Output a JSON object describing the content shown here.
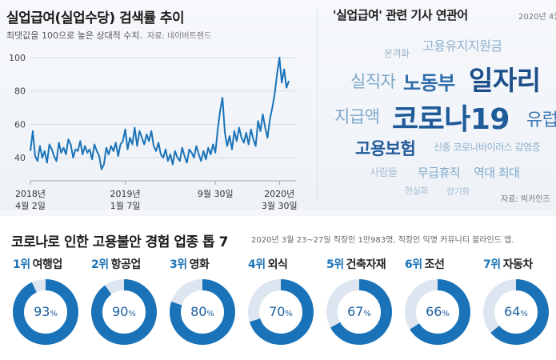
{
  "left_chart": {
    "title": "실업급여(실업수당) 검색률 추이",
    "subtitle": "최댓값을 100으로 놓은 상대적 수치.",
    "source": "자료: 네이버트렌드"
  },
  "word_cloud": {
    "title": "'실업급여' 관련 기사 연관어",
    "date": "2020년 4월",
    "source": "자료: 빅카인즈",
    "words": [
      {
        "text": "본격화",
        "color": "#9db3c9"
      },
      {
        "text": "고용유지지원금",
        "color": "#8fb0cc"
      },
      {
        "text": "실직자",
        "color": "#7fa8c9"
      },
      {
        "text": "노동부",
        "color": "#2c6aa8"
      },
      {
        "text": "일자리",
        "color": "#1c4f8a"
      },
      {
        "text": "지급액",
        "color": "#7fa8c9"
      },
      {
        "text": "코로나19",
        "color": "#1f5a99"
      },
      {
        "text": "유럽",
        "color": "#3d78b3"
      },
      {
        "text": "고용보험",
        "color": "#1f5a99"
      },
      {
        "text": "신종 코로나바이러스 감염증",
        "color": "#8fb0cc"
      },
      {
        "text": "사람들",
        "color": "#a7bdd2"
      },
      {
        "text": "무급휴직",
        "color": "#7fa8c9"
      },
      {
        "text": "역대 최대",
        "color": "#7fa8c9"
      },
      {
        "text": "현실화",
        "color": "#a7bdd2"
      },
      {
        "text": "장기화",
        "color": "#a7bdd2"
      }
    ]
  },
  "bottom": {
    "title": "코로나로 인한 고용불안 경험 업종 톱 7",
    "subtitle": "2020년 3월 23~27일 직장인 1만983명, 직장인 익명 커뮤니티 블라인드 앱."
  },
  "industries": [
    {
      "rank": "1위",
      "name": "여행업",
      "pct": 93,
      "pct_label": "93"
    },
    {
      "rank": "2위",
      "name": "항공업",
      "pct": 90,
      "pct_label": "90"
    },
    {
      "rank": "3위",
      "name": "영화",
      "pct": 80,
      "pct_label": "80"
    },
    {
      "rank": "4위",
      "name": "외식",
      "pct": 70,
      "pct_label": "70"
    },
    {
      "rank": "5위",
      "name": "건축자재",
      "pct": 67,
      "pct_label": "67"
    },
    {
      "rank": "6위",
      "name": "조선",
      "pct": 66,
      "pct_label": "66"
    },
    {
      "rank": "7위",
      "name": "자동차",
      "pct": 64,
      "pct_label": "64"
    }
  ],
  "pct_unit": "%",
  "colors": {
    "accent": "#1a73b8",
    "ring_bg": "#dde6f0",
    "line": "#1a73b8"
  },
  "chart_data": [
    {
      "type": "line",
      "title": "실업급여(실업수당) 검색률 추이",
      "subtitle": "최댓값을 100으로 놓은 상대적 수치.",
      "xlabel": "",
      "ylabel": "",
      "ylim": [
        30,
        100
      ],
      "yticks": [
        40,
        60,
        80,
        100
      ],
      "grid": true,
      "x_range": [
        0,
        112
      ],
      "x_ticks": [
        {
          "pos": 0,
          "label": [
            "2018년",
            "4월 2일"
          ]
        },
        {
          "pos": 40,
          "label": [
            "2019년",
            "1월 7일"
          ]
        },
        {
          "pos": 78,
          "label": [
            "9월 30일"
          ]
        },
        {
          "pos": 105,
          "label": [
            "2020년",
            "3월 30일"
          ]
        }
      ],
      "series": [
        {
          "name": "검색률",
          "values": [
            44,
            56,
            41,
            38,
            47,
            40,
            44,
            37,
            48,
            45,
            41,
            38,
            49,
            43,
            46,
            42,
            51,
            48,
            40,
            45,
            44,
            50,
            42,
            47,
            43,
            45,
            39,
            48,
            44,
            41,
            33,
            36,
            46,
            42,
            47,
            44,
            49,
            41,
            48,
            50,
            57,
            45,
            52,
            48,
            58,
            47,
            56,
            52,
            48,
            54,
            50,
            56,
            47,
            44,
            49,
            42,
            40,
            45,
            38,
            42,
            36,
            44,
            40,
            38,
            46,
            41,
            37,
            45,
            43,
            40,
            47,
            42,
            38,
            44,
            39,
            46,
            42,
            48,
            43,
            57,
            68,
            76,
            55,
            47,
            53,
            45,
            56,
            50,
            58,
            52,
            49,
            55,
            48,
            57,
            51,
            47,
            62,
            56,
            66,
            58,
            52,
            63,
            70,
            78,
            90,
            100,
            85,
            93,
            82,
            86
          ]
        }
      ]
    },
    {
      "type": "pie",
      "title": "코로나로 인한 고용불안 경험 업종 톱 7",
      "categories": [
        "여행업",
        "항공업",
        "영화",
        "외식",
        "건축자재",
        "조선",
        "자동차"
      ],
      "values": [
        93,
        90,
        80,
        70,
        67,
        66,
        64
      ],
      "unit": "%"
    }
  ]
}
